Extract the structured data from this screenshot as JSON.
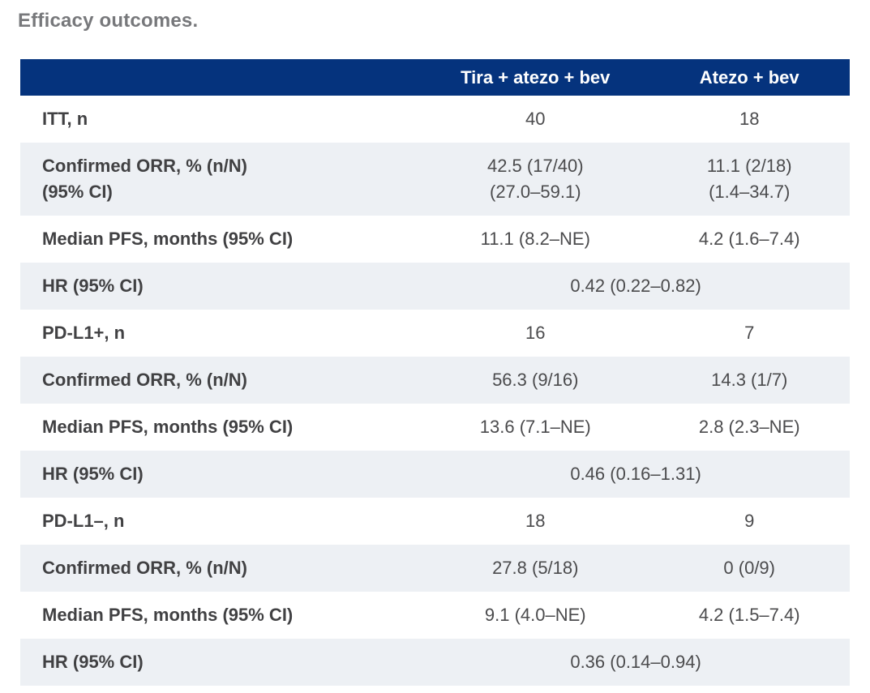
{
  "page": {
    "title": "Efficacy outcomes."
  },
  "colors": {
    "header_bg": "#05337d",
    "header_text": "#ffffff",
    "alt_row_bg": "#edf0f4",
    "label_text": "#414143",
    "value_text": "#4b4b4d",
    "title_text": "#77787b"
  },
  "table": {
    "header": {
      "col1": "Tira + atezo + bev",
      "col2": "Atezo + bev"
    },
    "rows": [
      {
        "label": "ITT, n",
        "col1": "40",
        "col2": "18"
      },
      {
        "label": "Confirmed ORR, % (n/N)\n(95% CI)",
        "col1": "42.5 (17/40)\n(27.0–59.1)",
        "col2": "11.1 (2/18)\n(1.4–34.7)"
      },
      {
        "label": "Median PFS, months (95% CI)",
        "col1": "11.1 (8.2–NE)",
        "col2": "4.2 (1.6–7.4)"
      },
      {
        "label": "HR (95% CI)",
        "span": "0.42 (0.22–0.82)"
      },
      {
        "label": "PD-L1+, n",
        "col1": "16",
        "col2": "7"
      },
      {
        "label": "Confirmed ORR, % (n/N)",
        "col1": "56.3 (9/16)",
        "col2": "14.3 (1/7)"
      },
      {
        "label": "Median PFS, months (95% CI)",
        "col1": "13.6 (7.1–NE)",
        "col2": "2.8 (2.3–NE)"
      },
      {
        "label": "HR (95% CI)",
        "span": "0.46 (0.16–1.31)"
      },
      {
        "label": "PD-L1–, n",
        "col1": "18",
        "col2": "9"
      },
      {
        "label": "Confirmed ORR, % (n/N)",
        "col1": "27.8 (5/18)",
        "col2": "0 (0/9)"
      },
      {
        "label": "Median PFS, months (95% CI)",
        "col1": "9.1 (4.0–NE)",
        "col2": "4.2 (1.5–7.4)"
      },
      {
        "label": "HR (95% CI)",
        "span": "0.36 (0.14–0.94)"
      }
    ]
  }
}
